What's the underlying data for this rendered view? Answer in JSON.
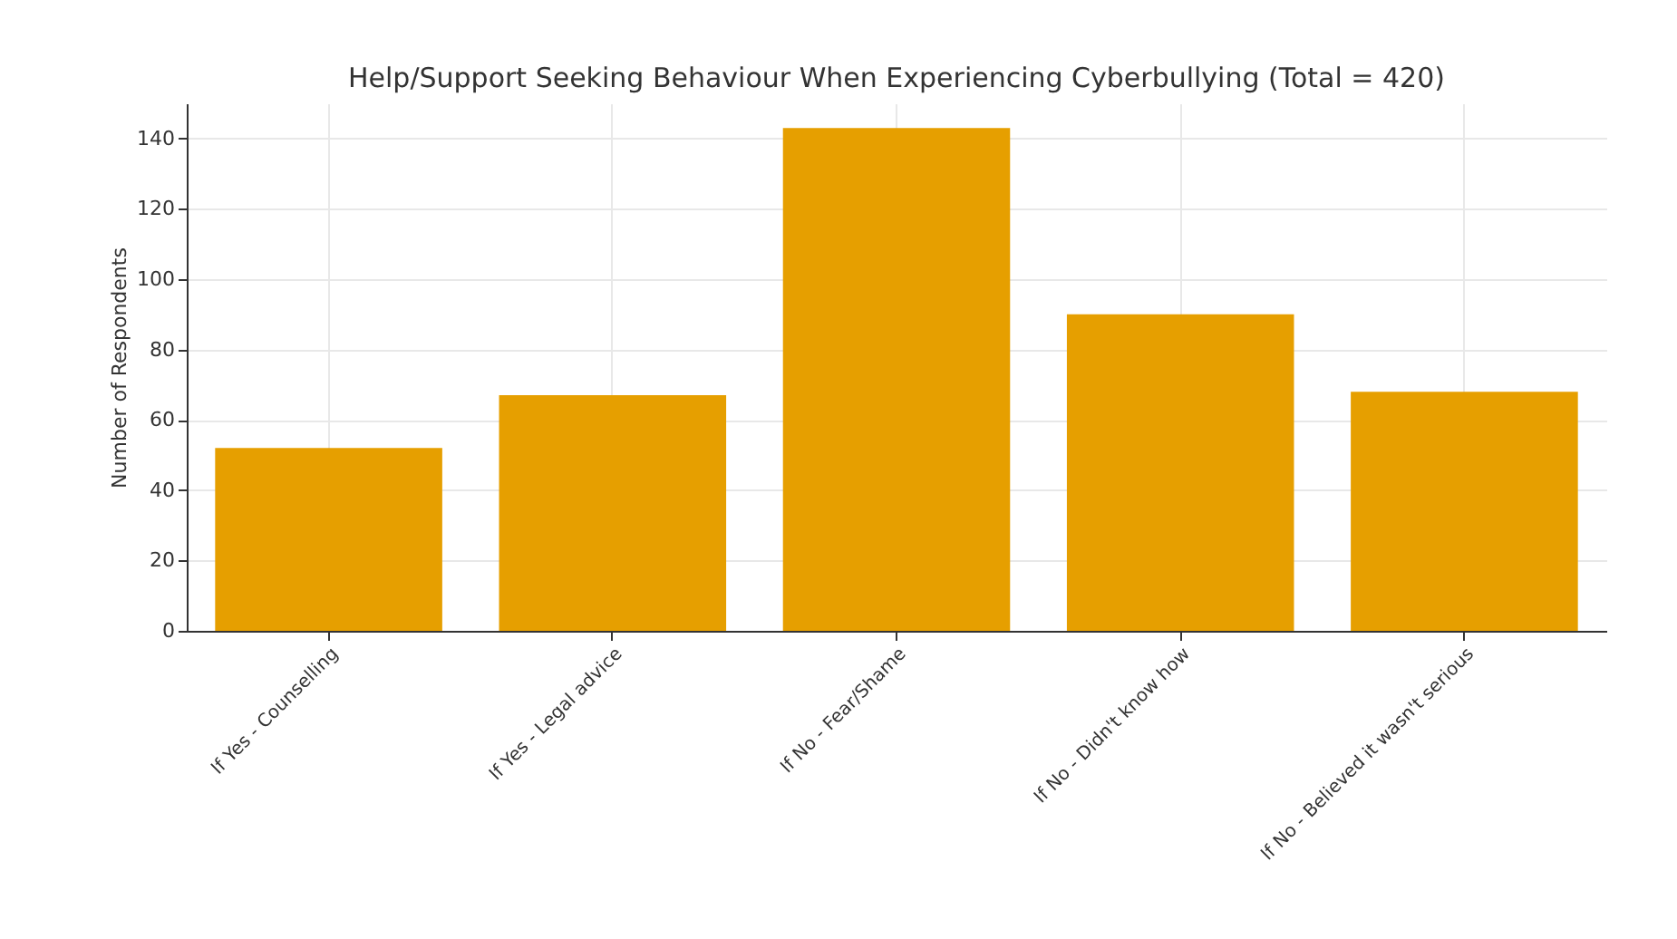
{
  "chart_data": {
    "type": "bar",
    "title": "Help/Support Seeking Behaviour When Experiencing Cyberbullying (Total = 420)",
    "ylabel": "Number of Respondents",
    "categories": [
      "If Yes - Counselling",
      "If Yes - Legal advice",
      "If No - Fear/Shame",
      "If No - Didn't know how",
      "If No - Believed it wasn't serious"
    ],
    "values": [
      52,
      67,
      143,
      90,
      68
    ],
    "color": "#e69f00",
    "ylim": [
      0,
      150
    ],
    "yticks": [
      0,
      20,
      40,
      60,
      80,
      100,
      120,
      140
    ],
    "grid": true
  }
}
